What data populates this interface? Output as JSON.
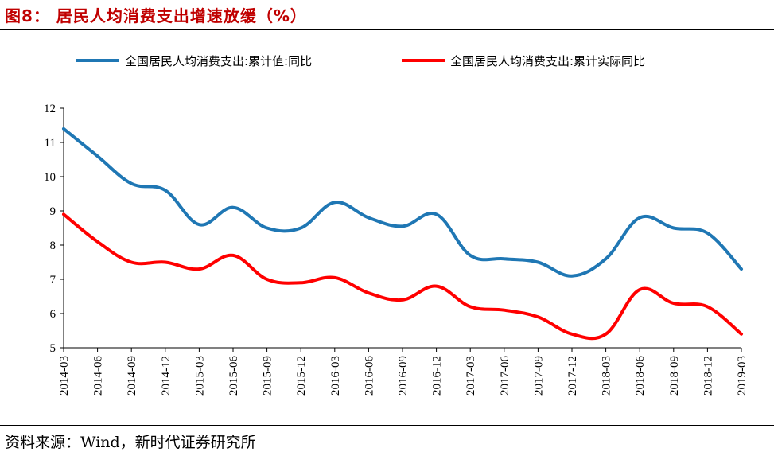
{
  "header": {
    "title": "图8：  居民人均消费支出增速放缓（%）"
  },
  "footer": {
    "source": "资料来源：Wind，新时代证券研究所"
  },
  "colors": {
    "series1": "#1f77b4",
    "series2": "#ff0000",
    "axis": "#000000"
  },
  "chart_data": {
    "type": "line",
    "x": [
      "2014-03",
      "2014-06",
      "2014-09",
      "2014-12",
      "2015-03",
      "2015-06",
      "2015-09",
      "2015-12",
      "2016-03",
      "2016-06",
      "2016-09",
      "2016-12",
      "2017-03",
      "2017-06",
      "2017-09",
      "2017-12",
      "2018-03",
      "2018-06",
      "2018-09",
      "2018-12",
      "2019-03"
    ],
    "series": [
      {
        "name": "全国居民人均消费支出:累计值:同比",
        "values": [
          11.4,
          10.6,
          9.8,
          9.6,
          8.6,
          9.1,
          8.5,
          8.5,
          9.25,
          8.8,
          8.55,
          8.9,
          7.7,
          7.6,
          7.5,
          7.1,
          7.6,
          8.8,
          8.5,
          8.35,
          7.3
        ]
      },
      {
        "name": "全国居民人均消费支出:累计实际同比",
        "values": [
          8.9,
          8.1,
          7.5,
          7.5,
          7.3,
          7.7,
          7.0,
          6.9,
          7.05,
          6.6,
          6.4,
          6.8,
          6.2,
          6.1,
          5.9,
          5.4,
          5.4,
          6.7,
          6.3,
          6.2,
          5.4
        ]
      }
    ],
    "ylim": [
      5,
      12
    ],
    "yticks": [
      "5",
      "6",
      "7",
      "8",
      "9",
      "10",
      "11",
      "12"
    ],
    "legend_position": "top",
    "grid": false
  }
}
